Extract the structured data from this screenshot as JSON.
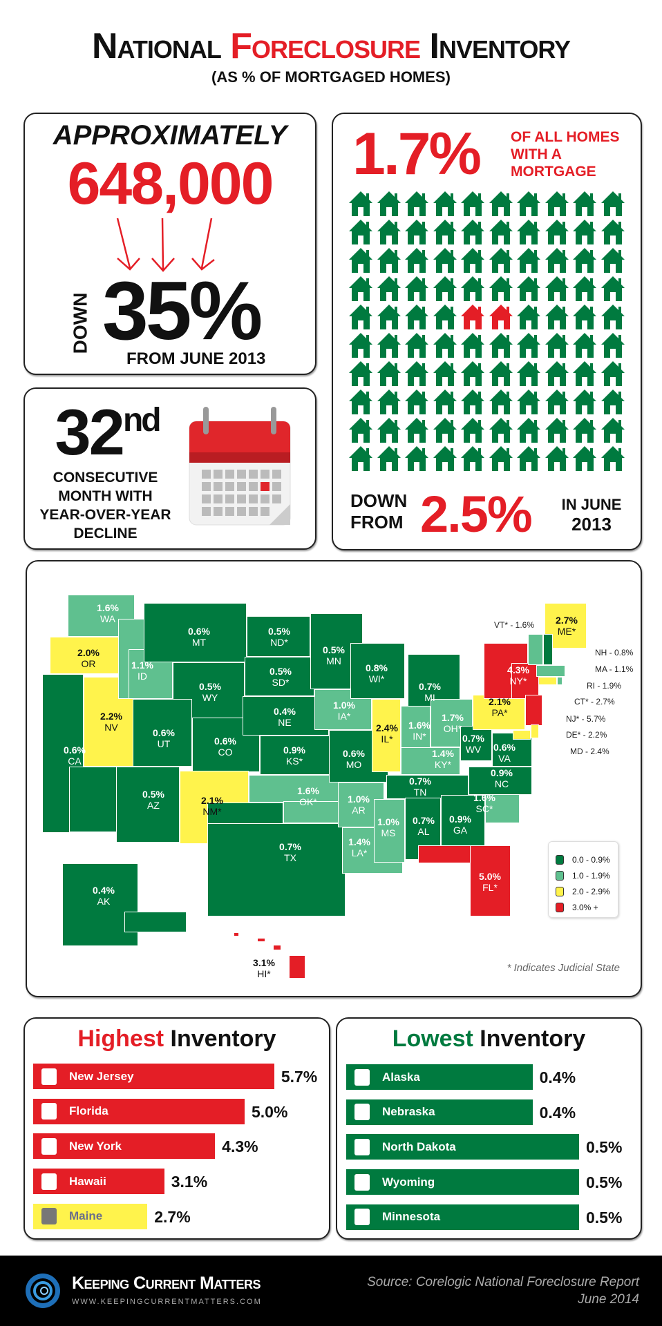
{
  "header": {
    "title_part1": "National ",
    "title_part2": "Foreclosure",
    "title_part3": " Inventory",
    "subtitle": "(AS % OF MORTGAGED HOMES)"
  },
  "inventory_box": {
    "approx": "APPROXIMATELY",
    "count": "648,000",
    "down_label": "DOWN",
    "change": "35%",
    "since": "FROM JUNE 2013"
  },
  "streak_box": {
    "number": "32",
    "suffix": "nd",
    "caption": [
      "CONSECUTIVE",
      "MONTH WITH",
      "YEAR-OVER-YEAR",
      "DECLINE"
    ]
  },
  "share_box": {
    "percent": "1.7%",
    "caption": [
      "OF ALL HOMES",
      "WITH A",
      "MORTGAGE"
    ],
    "houses_total": 100,
    "houses_highlighted": 2,
    "down_from": [
      "DOWN",
      "FROM"
    ],
    "prev_percent": "2.5%",
    "prev_when": [
      "IN JUNE",
      "2013"
    ]
  },
  "colors": {
    "green": "#007a3f",
    "light_green": "#5fc08f",
    "yellow": "#fff34c",
    "red": "#e41e26"
  },
  "map": {
    "states": [
      {
        "code": "WA",
        "value": "1.6%",
        "cat": 1
      },
      {
        "code": "OR",
        "value": "2.0%",
        "cat": 2
      },
      {
        "code": "CA",
        "value": "0.6%",
        "cat": 0
      },
      {
        "code": "NV",
        "value": "2.2%",
        "cat": 2
      },
      {
        "code": "ID",
        "value": "1.1%",
        "cat": 1
      },
      {
        "code": "MT",
        "value": "0.6%",
        "cat": 0
      },
      {
        "code": "WY",
        "value": "0.5%",
        "cat": 0
      },
      {
        "code": "UT",
        "value": "0.6%",
        "cat": 0
      },
      {
        "code": "CO",
        "value": "0.6%",
        "cat": 0
      },
      {
        "code": "AZ",
        "value": "0.5%",
        "cat": 0
      },
      {
        "code": "NM*",
        "value": "2.1%",
        "cat": 2
      },
      {
        "code": "ND*",
        "value": "0.5%",
        "cat": 0
      },
      {
        "code": "SD*",
        "value": "0.5%",
        "cat": 0
      },
      {
        "code": "NE",
        "value": "0.4%",
        "cat": 0
      },
      {
        "code": "KS*",
        "value": "0.9%",
        "cat": 0
      },
      {
        "code": "OK*",
        "value": "1.6%",
        "cat": 1
      },
      {
        "code": "TX",
        "value": "0.7%",
        "cat": 0
      },
      {
        "code": "MN",
        "value": "0.5%",
        "cat": 0
      },
      {
        "code": "IA*",
        "value": "1.0%",
        "cat": 1
      },
      {
        "code": "MO",
        "value": "0.6%",
        "cat": 0
      },
      {
        "code": "AR",
        "value": "1.0%",
        "cat": 1
      },
      {
        "code": "LA*",
        "value": "1.4%",
        "cat": 1
      },
      {
        "code": "WI*",
        "value": "0.8%",
        "cat": 0
      },
      {
        "code": "IL*",
        "value": "2.4%",
        "cat": 2
      },
      {
        "code": "MI",
        "value": "0.7%",
        "cat": 0
      },
      {
        "code": "IN*",
        "value": "1.6%",
        "cat": 1
      },
      {
        "code": "OH*",
        "value": "1.7%",
        "cat": 1
      },
      {
        "code": "KY*",
        "value": "1.4%",
        "cat": 1
      },
      {
        "code": "TN",
        "value": "0.7%",
        "cat": 0
      },
      {
        "code": "MS",
        "value": "1.0%",
        "cat": 1
      },
      {
        "code": "AL",
        "value": "0.7%",
        "cat": 0
      },
      {
        "code": "GA",
        "value": "0.9%",
        "cat": 0
      },
      {
        "code": "FL*",
        "value": "5.0%",
        "cat": 3
      },
      {
        "code": "SC*",
        "value": "1.6%",
        "cat": 1
      },
      {
        "code": "NC",
        "value": "0.9%",
        "cat": 0
      },
      {
        "code": "VA",
        "value": "0.6%",
        "cat": 0
      },
      {
        "code": "WV",
        "value": "0.7%",
        "cat": 0
      },
      {
        "code": "PA*",
        "value": "2.1%",
        "cat": 2
      },
      {
        "code": "NY*",
        "value": "4.3%",
        "cat": 3
      },
      {
        "code": "ME*",
        "value": "2.7%",
        "cat": 2
      },
      {
        "code": "AK",
        "value": "0.4%",
        "cat": 0
      },
      {
        "code": "HI*",
        "value": "3.1%",
        "cat": 3
      }
    ],
    "callouts": [
      {
        "text": "VT* - 1.6%",
        "cat": 1
      },
      {
        "text": "NH - 0.8%",
        "cat": 0
      },
      {
        "text": "MA - 1.1%",
        "cat": 1
      },
      {
        "text": "RI - 1.9%",
        "cat": 1
      },
      {
        "text": "CT* - 2.7%",
        "cat": 2
      },
      {
        "text": "NJ* - 5.7%",
        "cat": 3
      },
      {
        "text": "DE* - 2.2%",
        "cat": 2
      },
      {
        "text": "MD - 2.4%",
        "cat": 2
      }
    ],
    "legend": [
      "0.0 - 0.9%",
      "1.0 - 1.9%",
      "2.0 - 2.9%",
      "3.0% +"
    ],
    "footnote": "* Indicates Judicial State"
  },
  "highest": {
    "title_a": "Highest",
    "title_b": " Inventory",
    "items": [
      {
        "state": "New Jersey",
        "value": "5.7%",
        "pct": 5.7,
        "cat": 3
      },
      {
        "state": "Florida",
        "value": "5.0%",
        "pct": 5.0,
        "cat": 3
      },
      {
        "state": "New York",
        "value": "4.3%",
        "pct": 4.3,
        "cat": 3
      },
      {
        "state": "Hawaii",
        "value": "3.1%",
        "pct": 3.1,
        "cat": 3
      },
      {
        "state": "Maine",
        "value": "2.7%",
        "pct": 2.7,
        "cat": 2
      }
    ]
  },
  "lowest": {
    "title_a": "Lowest",
    "title_b": " Inventory",
    "items": [
      {
        "state": "Alaska",
        "value": "0.4%",
        "pct": 0.4
      },
      {
        "state": "Nebraska",
        "value": "0.4%",
        "pct": 0.4
      },
      {
        "state": "North Dakota",
        "value": "0.5%",
        "pct": 0.5
      },
      {
        "state": "Wyoming",
        "value": "0.5%",
        "pct": 0.5
      },
      {
        "state": "Minnesota",
        "value": "0.5%",
        "pct": 0.5
      }
    ]
  },
  "footer": {
    "brand": "Keeping Current Matters",
    "url": "WWW.KEEPINGCURRENTMATTERS.COM",
    "source": "Source: Corelogic National Foreclosure Report",
    "date": "June 2014"
  }
}
